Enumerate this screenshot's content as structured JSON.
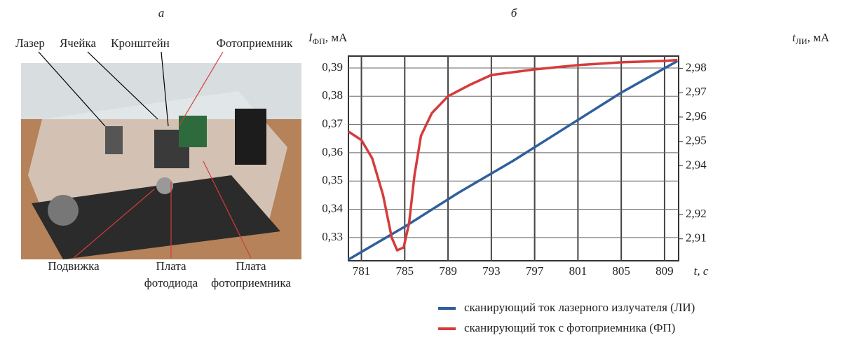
{
  "panel_a": {
    "label": "а",
    "top_labels": [
      "Лазер",
      "Ячейка",
      "Кронштейн",
      "Фотоприемник"
    ],
    "bottom_labels": [
      [
        "Подвижка"
      ],
      [
        "Плата",
        "фотодиода"
      ],
      [
        "Плата",
        "фотоприемника"
      ]
    ]
  },
  "chart_data": {
    "type": "line",
    "panel_label": "б",
    "ylabel": {
      "symbol": "I",
      "subscript": "ФП",
      "unit": ", мА"
    },
    "y2label": {
      "symbol": "t",
      "subscript": "ЛИ",
      "unit": ", мА"
    },
    "xlabel": "t, с",
    "xlim": [
      779.8,
      810.3
    ],
    "xticks": [
      781,
      785,
      789,
      793,
      797,
      801,
      805,
      809
    ],
    "ylim": [
      0.3218,
      0.3942
    ],
    "yticks": [
      {
        "value": 0.33,
        "label": "0,33"
      },
      {
        "value": 0.34,
        "label": "0,34"
      },
      {
        "value": 0.35,
        "label": "0,35"
      },
      {
        "value": 0.36,
        "label": "0,36"
      },
      {
        "value": 0.37,
        "label": "0,37"
      },
      {
        "value": 0.38,
        "label": "0,38"
      },
      {
        "value": 0.39,
        "label": "0,39"
      }
    ],
    "y2lim": [
      2.901,
      2.985
    ],
    "y2ticks": [
      {
        "value": 2.91,
        "label": "2,91"
      },
      {
        "value": 2.92,
        "label": "2,92"
      },
      {
        "value": 2.94,
        "label": "2,94"
      },
      {
        "value": 2.95,
        "label": "2,95"
      },
      {
        "value": 2.96,
        "label": "2,96"
      },
      {
        "value": 2.97,
        "label": "2,97"
      },
      {
        "value": 2.98,
        "label": "2,98"
      }
    ],
    "grid": true,
    "series": [
      {
        "name": "сканирующий ток лазерного излучателя (ЛИ)",
        "color": "#2f5f9e",
        "axis": "y2",
        "x": [
          779.8,
          785,
          790,
          795,
          800,
          805,
          810.2
        ],
        "values": [
          2.9015,
          2.915,
          2.929,
          2.942,
          2.956,
          2.97,
          2.983
        ]
      },
      {
        "name": "сканирующий ток с фотоприемника (ФП)",
        "color": "#d43c3c",
        "x": [
          779.8,
          781,
          782,
          783,
          783.8,
          784.3,
          784.9,
          785.4,
          785.9,
          786.5,
          787.5,
          789,
          791,
          793,
          797,
          801,
          805,
          809,
          810.2
        ],
        "values": [
          0.3675,
          0.3645,
          0.358,
          0.345,
          0.33,
          0.3255,
          0.3265,
          0.335,
          0.352,
          0.366,
          0.374,
          0.38,
          0.384,
          0.3875,
          0.3895,
          0.391,
          0.392,
          0.3925,
          0.3928
        ]
      }
    ]
  }
}
